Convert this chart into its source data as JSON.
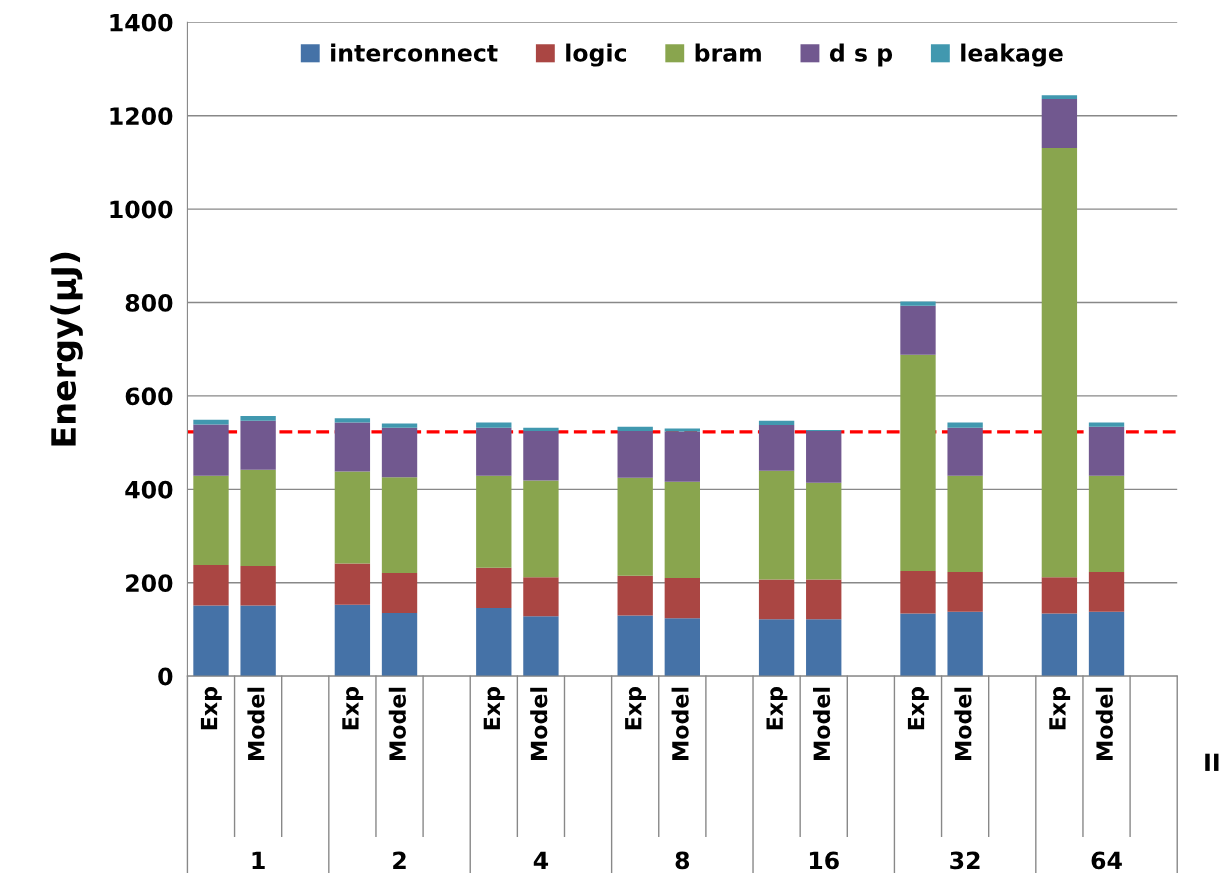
{
  "chart_data": {
    "type": "bar",
    "stacked": true,
    "ylabel": "Energy(μJ)",
    "xlabel": "II",
    "categories": [
      "Exp",
      "Model",
      null,
      "Exp",
      "Model",
      null,
      "Exp",
      "Model",
      null,
      "Exp",
      "Model",
      null,
      "Exp",
      "Model",
      null,
      "Exp",
      "Model",
      null,
      "Exp",
      "Model",
      null
    ],
    "annotations": [
      "1",
      "2",
      "4",
      "8",
      "16",
      "32",
      "64"
    ],
    "series": [
      {
        "name": "interconnect",
        "color": "#4572a7",
        "values": [
          151,
          151,
          null,
          153,
          135,
          null,
          146,
          128,
          null,
          130,
          124,
          null,
          122,
          122,
          null,
          134,
          138,
          null,
          134,
          138,
          null
        ]
      },
      {
        "name": "logic",
        "color": "#aa4643",
        "values": [
          87,
          85,
          null,
          88,
          86,
          null,
          86,
          84,
          null,
          85,
          86,
          null,
          85,
          85,
          null,
          91,
          85,
          null,
          78,
          85,
          null
        ]
      },
      {
        "name": "bram",
        "color": "#89a54e",
        "values": [
          191,
          206,
          null,
          197,
          205,
          null,
          197,
          207,
          null,
          210,
          206,
          null,
          233,
          207,
          null,
          463,
          206,
          null,
          919,
          206,
          null
        ]
      },
      {
        "name": "d s p",
        "color": "#71588f",
        "values": [
          110,
          105,
          null,
          105,
          106,
          null,
          103,
          106,
          null,
          100,
          108,
          null,
          98,
          111,
          null,
          105,
          103,
          null,
          105,
          105,
          null
        ]
      },
      {
        "name": "leakage",
        "color": "#4198af",
        "values": [
          10,
          10,
          null,
          9,
          9,
          null,
          11,
          7,
          null,
          9,
          6,
          null,
          9,
          2,
          null,
          9,
          11,
          null,
          8,
          9,
          null
        ]
      }
    ],
    "ylim": [
      0,
      1400
    ],
    "yticks": [
      0,
      200,
      400,
      600,
      800,
      1000,
      1200,
      1400
    ],
    "grid": "y",
    "legend": "top",
    "ref_lines": [
      {
        "axis": "y",
        "value": 523,
        "color": "#ff0000",
        "line_style": "dashed"
      }
    ]
  }
}
